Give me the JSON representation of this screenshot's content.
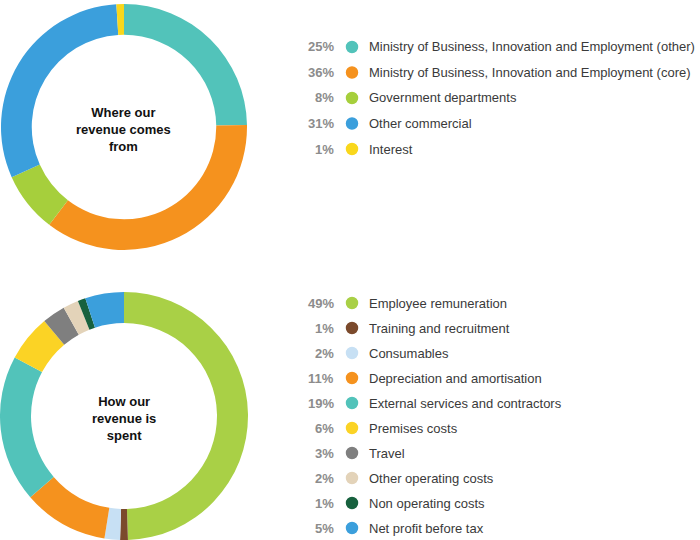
{
  "chart_data": [
    {
      "type": "donut",
      "title": "Where our revenue comes from",
      "categories": [
        "Ministry of Business, Innovation and Employment (other)",
        "Ministry of Business, Innovation and Employment (core)",
        "Government departments",
        "Other commercial",
        "Interest"
      ],
      "values": [
        25,
        36,
        8,
        31,
        1
      ],
      "value_labels": [
        "25%",
        "36%",
        "8%",
        "31%",
        "1%"
      ],
      "colors": [
        "#52c3ba",
        "#f5921e",
        "#a6cf3c",
        "#3b9fdc",
        "#f9d71c"
      ],
      "legend": "right",
      "data_labels": false
    },
    {
      "type": "donut",
      "title": "How our revenue is spent",
      "categories": [
        "Employee remuneration",
        "Training and recruitment",
        "Consumables",
        "Depreciation and amortisation",
        "External services and contractors",
        "Premises costs",
        "Travel",
        "Other operating costs",
        "Non operating costs",
        "Net profit before tax"
      ],
      "values": [
        49,
        1,
        2,
        11,
        19,
        6,
        3,
        2,
        1,
        5
      ],
      "value_labels": [
        "49%",
        "1%",
        "2%",
        "11%",
        "19%",
        "6%",
        "3%",
        "2%",
        "1%",
        "5%"
      ],
      "colors": [
        "#a9d046",
        "#7b4a2c",
        "#c7e0f4",
        "#f5921e",
        "#52c3ba",
        "#fbd325",
        "#7f7f7f",
        "#e3d3b9",
        "#17613e",
        "#3b9fdc"
      ],
      "legend": "right",
      "data_labels": false
    }
  ]
}
